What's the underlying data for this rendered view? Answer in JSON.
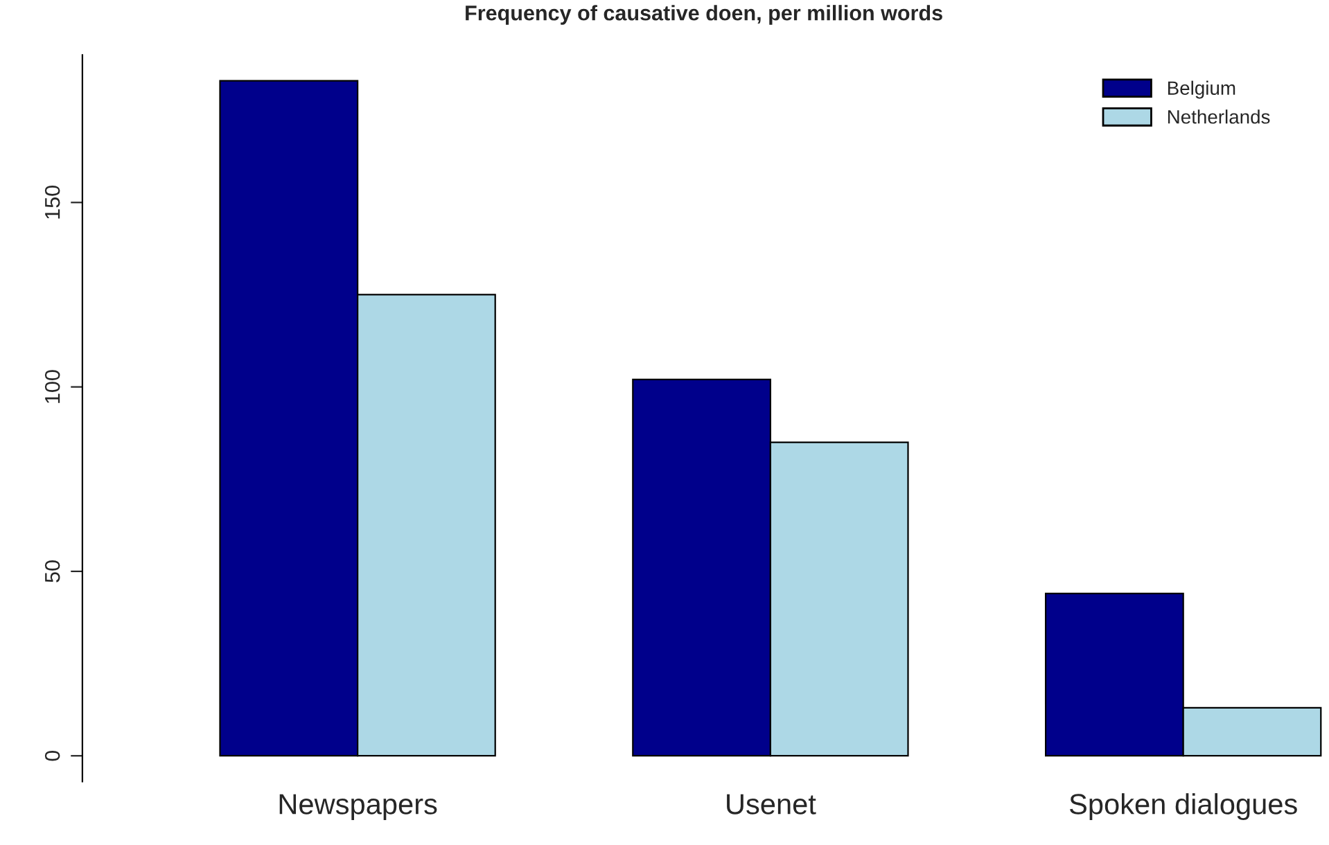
{
  "chart_data": {
    "type": "bar",
    "title": "Frequency of causative doen, per million words",
    "categories": [
      "Newspapers",
      "Usenet",
      "Spoken dialogues"
    ],
    "series": [
      {
        "name": "Belgium",
        "color": "#00008b",
        "values": [
          183,
          102,
          44
        ]
      },
      {
        "name": "Netherlands",
        "color": "#add8e6",
        "values": [
          125,
          85,
          13
        ]
      }
    ],
    "ylim": [
      -7,
      190
    ],
    "yticks": [
      0,
      50,
      100,
      150
    ],
    "grid": false,
    "legend": "top right"
  }
}
